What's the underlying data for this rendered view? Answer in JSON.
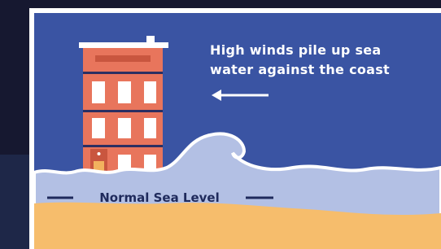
{
  "annotation": {
    "lines": [
      "High winds pile up sea",
      "water against the coast"
    ]
  },
  "sea_level_label": "Normal Sea Level"
}
